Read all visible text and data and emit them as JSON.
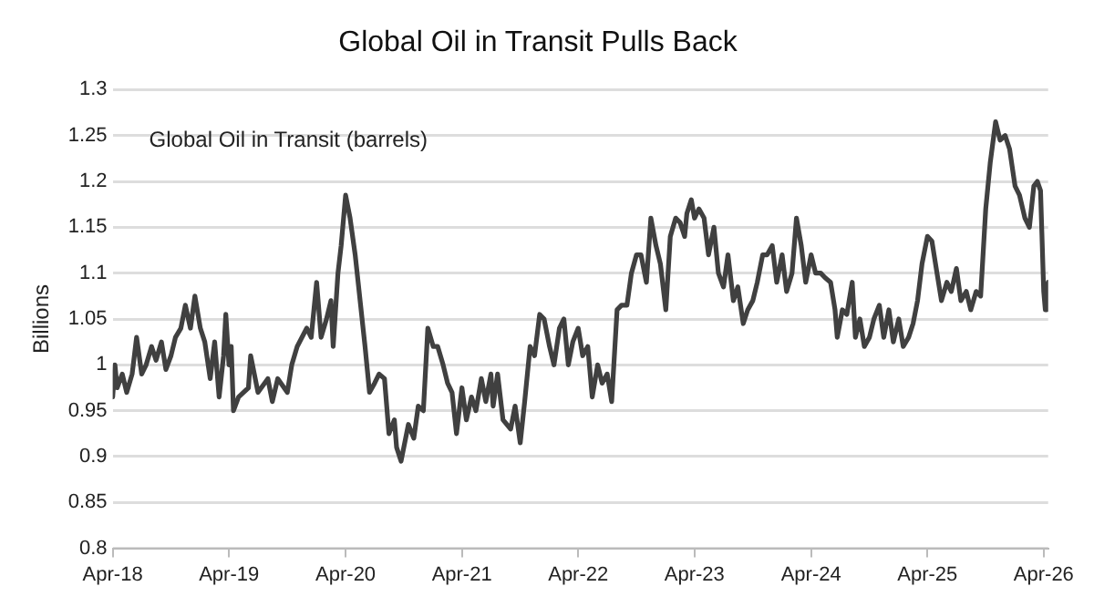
{
  "chart_data": {
    "type": "line",
    "title": "Global Oil in Transit Pulls Back",
    "ylabel": "Billions",
    "xlim": [
      "2018-04-01",
      "2026-04-15"
    ],
    "xticks": [
      {
        "value": "2018-04-01",
        "label": "Apr-18"
      },
      {
        "value": "2019-04-01",
        "label": "Apr-19"
      },
      {
        "value": "2020-04-01",
        "label": "Apr-20"
      },
      {
        "value": "2021-04-01",
        "label": "Apr-21"
      },
      {
        "value": "2022-04-01",
        "label": "Apr-22"
      },
      {
        "value": "2023-04-01",
        "label": "Apr-23"
      },
      {
        "value": "2024-04-01",
        "label": "Apr-24"
      },
      {
        "value": "2025-04-01",
        "label": "Apr-25"
      },
      {
        "value": "2026-04-01",
        "label": "Apr-26"
      }
    ],
    "ylim": [
      0.8,
      1.3
    ],
    "yticks": [
      0.8,
      0.85,
      0.9,
      0.95,
      1,
      1.05,
      1.1,
      1.15,
      1.2,
      1.25,
      1.3
    ],
    "grid": "y",
    "legend": false,
    "marker": "none",
    "line_style": "solid",
    "series": [
      {
        "name": "Global Oil in Transit (barrels)",
        "color": "#404040",
        "x": [
          "2018-04-01",
          "2018-04-08",
          "2018-04-15",
          "2018-05-01",
          "2018-05-15",
          "2018-06-01",
          "2018-06-15",
          "2018-07-01",
          "2018-07-15",
          "2018-08-01",
          "2018-08-15",
          "2018-09-01",
          "2018-09-15",
          "2018-10-01",
          "2018-10-15",
          "2018-11-01",
          "2018-11-15",
          "2018-12-01",
          "2018-12-15",
          "2019-01-01",
          "2019-01-15",
          "2019-02-01",
          "2019-02-15",
          "2019-03-01",
          "2019-03-15",
          "2019-03-22",
          "2019-04-01",
          "2019-04-08",
          "2019-04-15",
          "2019-05-01",
          "2019-06-01",
          "2019-06-08",
          "2019-07-01",
          "2019-08-01",
          "2019-08-15",
          "2019-09-01",
          "2019-10-01",
          "2019-10-15",
          "2019-11-01",
          "2019-12-01",
          "2019-12-15",
          "2020-01-01",
          "2020-01-15",
          "2020-02-01",
          "2020-02-15",
          "2020-02-22",
          "2020-03-08",
          "2020-03-18",
          "2020-04-01",
          "2020-04-15",
          "2020-05-01",
          "2020-06-01",
          "2020-06-15",
          "2020-07-01",
          "2020-07-15",
          "2020-08-01",
          "2020-08-15",
          "2020-09-01",
          "2020-09-08",
          "2020-09-22",
          "2020-10-15",
          "2020-11-01",
          "2020-11-15",
          "2020-12-01",
          "2020-12-15",
          "2021-01-01",
          "2021-01-15",
          "2021-02-01",
          "2021-02-15",
          "2021-03-01",
          "2021-03-15",
          "2021-04-01",
          "2021-04-15",
          "2021-05-01",
          "2021-05-15",
          "2021-06-01",
          "2021-06-15",
          "2021-07-01",
          "2021-07-08",
          "2021-07-22",
          "2021-08-08",
          "2021-09-01",
          "2021-09-15",
          "2021-10-01",
          "2021-10-15",
          "2021-11-01",
          "2021-11-15",
          "2021-12-01",
          "2021-12-15",
          "2022-01-01",
          "2022-01-15",
          "2022-02-01",
          "2022-02-15",
          "2022-03-01",
          "2022-03-15",
          "2022-04-01",
          "2022-04-15",
          "2022-05-01",
          "2022-05-15",
          "2022-06-01",
          "2022-06-15",
          "2022-07-01",
          "2022-07-15",
          "2022-08-01",
          "2022-08-15",
          "2022-09-01",
          "2022-09-15",
          "2022-10-01",
          "2022-10-15",
          "2022-11-01",
          "2022-11-15",
          "2022-12-01",
          "2022-12-15",
          "2023-01-01",
          "2023-01-15",
          "2023-02-01",
          "2023-02-15",
          "2023-03-01",
          "2023-03-08",
          "2023-03-22",
          "2023-04-01",
          "2023-04-15",
          "2023-05-01",
          "2023-05-15",
          "2023-06-01",
          "2023-06-15",
          "2023-07-01",
          "2023-07-15",
          "2023-08-01",
          "2023-08-15",
          "2023-09-01",
          "2023-09-15",
          "2023-10-01",
          "2023-10-15",
          "2023-11-01",
          "2023-11-15",
          "2023-12-01",
          "2023-12-15",
          "2024-01-01",
          "2024-01-15",
          "2024-02-01",
          "2024-02-15",
          "2024-03-01",
          "2024-03-15",
          "2024-04-01",
          "2024-04-15",
          "2024-05-01",
          "2024-05-15",
          "2024-06-01",
          "2024-06-15",
          "2024-06-22",
          "2024-07-08",
          "2024-07-22",
          "2024-08-08",
          "2024-08-18",
          "2024-09-01",
          "2024-09-15",
          "2024-10-01",
          "2024-10-15",
          "2024-11-01",
          "2024-11-15",
          "2024-12-01",
          "2024-12-15",
          "2025-01-01",
          "2025-01-15",
          "2025-02-01",
          "2025-02-15",
          "2025-03-01",
          "2025-03-15",
          "2025-04-01",
          "2025-04-15",
          "2025-05-01",
          "2025-05-15",
          "2025-06-01",
          "2025-06-15",
          "2025-07-01",
          "2025-07-15",
          "2025-08-01",
          "2025-08-15",
          "2025-09-01",
          "2025-09-15",
          "2025-10-01",
          "2025-10-15",
          "2025-11-01",
          "2025-11-15",
          "2025-12-01",
          "2025-12-15",
          "2026-01-01",
          "2026-01-15",
          "2026-02-01",
          "2026-02-15",
          "2026-03-01",
          "2026-03-12",
          "2026-03-22",
          "2026-04-01",
          "2026-04-06",
          "2026-04-10",
          "2026-04-15"
        ],
        "values": [
          0.965,
          1.0,
          0.975,
          0.99,
          0.97,
          0.99,
          1.03,
          0.99,
          1.0,
          1.02,
          1.005,
          1.025,
          0.995,
          1.01,
          1.03,
          1.04,
          1.065,
          1.04,
          1.075,
          1.04,
          1.025,
          0.985,
          1.025,
          0.965,
          1.01,
          1.055,
          1.0,
          1.02,
          0.95,
          0.965,
          0.975,
          1.01,
          0.97,
          0.985,
          0.96,
          0.985,
          0.97,
          1.0,
          1.02,
          1.04,
          1.03,
          1.09,
          1.03,
          1.05,
          1.07,
          1.02,
          1.1,
          1.13,
          1.185,
          1.16,
          1.12,
          1.02,
          0.97,
          0.98,
          0.99,
          0.985,
          0.925,
          0.94,
          0.91,
          0.895,
          0.935,
          0.92,
          0.955,
          0.95,
          1.04,
          1.02,
          1.02,
          1.0,
          0.98,
          0.97,
          0.925,
          0.975,
          0.94,
          0.965,
          0.95,
          0.985,
          0.96,
          0.99,
          0.955,
          0.99,
          0.94,
          0.93,
          0.955,
          0.915,
          0.96,
          1.02,
          1.01,
          1.055,
          1.05,
          1.02,
          1.0,
          1.04,
          1.05,
          1.0,
          1.025,
          1.04,
          1.01,
          1.02,
          0.965,
          1.0,
          0.98,
          0.99,
          0.96,
          1.06,
          1.065,
          1.065,
          1.1,
          1.12,
          1.12,
          1.09,
          1.16,
          1.13,
          1.11,
          1.06,
          1.14,
          1.16,
          1.155,
          1.14,
          1.165,
          1.18,
          1.16,
          1.17,
          1.16,
          1.12,
          1.15,
          1.1,
          1.085,
          1.12,
          1.07,
          1.085,
          1.045,
          1.06,
          1.07,
          1.09,
          1.12,
          1.12,
          1.13,
          1.09,
          1.12,
          1.08,
          1.1,
          1.16,
          1.13,
          1.09,
          1.12,
          1.1,
          1.1,
          1.095,
          1.09,
          1.06,
          1.03,
          1.06,
          1.055,
          1.09,
          1.03,
          1.05,
          1.02,
          1.03,
          1.05,
          1.065,
          1.03,
          1.06,
          1.025,
          1.05,
          1.02,
          1.03,
          1.045,
          1.07,
          1.11,
          1.14,
          1.135,
          1.1,
          1.07,
          1.09,
          1.08,
          1.105,
          1.07,
          1.08,
          1.06,
          1.08,
          1.075,
          1.17,
          1.22,
          1.265,
          1.245,
          1.25,
          1.235,
          1.195,
          1.185,
          1.16,
          1.15,
          1.195,
          1.2,
          1.19,
          1.08,
          1.06,
          1.08,
          1.09
        ]
      }
    ]
  }
}
